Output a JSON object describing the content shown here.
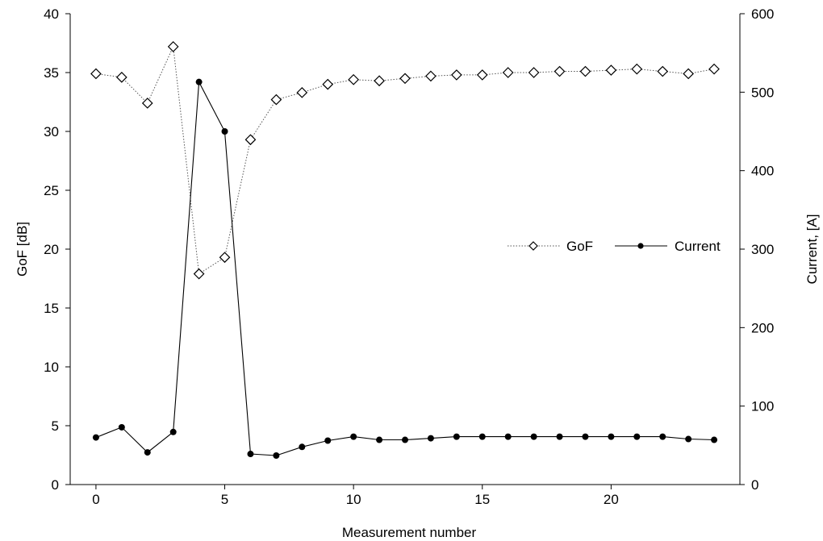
{
  "chart_data": {
    "type": "line",
    "xlabel": "Measurement  number",
    "ylabel_left": "GoF [dB]",
    "ylabel_right": "Current, [A]",
    "xlim": [
      -1,
      25
    ],
    "ylim_left": [
      0,
      40
    ],
    "ylim_right": [
      0,
      600
    ],
    "x_ticks": [
      0,
      5,
      10,
      15,
      20
    ],
    "y_ticks_left": [
      0,
      5,
      10,
      15,
      20,
      25,
      30,
      35,
      40
    ],
    "y_ticks_right": [
      0,
      100,
      200,
      300,
      400,
      500,
      600
    ],
    "grid": false,
    "legend_position": "right-middle",
    "x": [
      0,
      1,
      2,
      3,
      4,
      5,
      6,
      7,
      8,
      9,
      10,
      11,
      12,
      13,
      14,
      15,
      16,
      17,
      18,
      19,
      20,
      21,
      22,
      23,
      24
    ],
    "series": [
      {
        "name": "GoF",
        "axis": "left",
        "marker": "diamond-open",
        "line": "dotted",
        "values": [
          34.9,
          34.6,
          32.4,
          37.2,
          17.9,
          19.3,
          29.3,
          32.7,
          33.3,
          34.0,
          34.4,
          34.3,
          34.5,
          34.7,
          34.8,
          34.8,
          35.0,
          35.0,
          35.1,
          35.1,
          35.2,
          35.3,
          35.1,
          34.9,
          35.3
        ]
      },
      {
        "name": "Current",
        "axis": "right",
        "marker": "circle-filled",
        "line": "solid",
        "values": [
          60,
          73,
          41,
          67,
          513,
          450,
          39,
          37,
          48,
          56,
          61,
          57,
          57,
          59,
          61,
          61,
          61,
          61,
          61,
          61,
          61,
          61,
          61,
          58,
          57
        ]
      }
    ]
  }
}
